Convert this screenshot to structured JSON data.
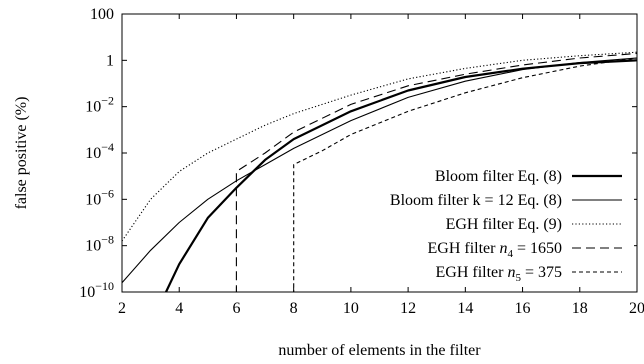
{
  "chart_data": {
    "type": "line",
    "title": "",
    "xlabel": "number of elements in the filter",
    "ylabel": "false positive (%)",
    "xlim": [
      2,
      20
    ],
    "ylim_log10": [
      -10,
      2
    ],
    "y_scale": "log",
    "x_ticks": [
      2,
      4,
      6,
      8,
      10,
      12,
      14,
      16,
      18,
      20
    ],
    "y_ticks": [
      {
        "exp": 2,
        "base": "100",
        "sup": ""
      },
      {
        "exp": 0,
        "base": "1",
        "sup": ""
      },
      {
        "exp": -2,
        "base": "10",
        "sup": "−2"
      },
      {
        "exp": -4,
        "base": "10",
        "sup": "−4"
      },
      {
        "exp": -6,
        "base": "10",
        "sup": "−6"
      },
      {
        "exp": -8,
        "base": "10",
        "sup": "−8"
      },
      {
        "exp": -10,
        "base": "10",
        "sup": "−10"
      }
    ],
    "legend_position": "bottom-right",
    "series": [
      {
        "name": "Bloom filter Eq. (8)",
        "style": "thick-solid",
        "x": [
          3.5,
          4,
          5,
          6,
          7,
          8,
          10,
          12,
          14,
          16,
          18,
          20
        ],
        "log10_y": [
          -10.1,
          -8.8,
          -6.8,
          -5.5,
          -4.3,
          -3.4,
          -2.2,
          -1.3,
          -0.72,
          -0.36,
          -0.12,
          0.0
        ]
      },
      {
        "name": "Bloom filter k = 12 Eq. (8)",
        "style": "thin-solid",
        "x": [
          2,
          3,
          4,
          5,
          6,
          7,
          8,
          10,
          12,
          14,
          16,
          18,
          20
        ],
        "log10_y": [
          -9.6,
          -8.2,
          -7.0,
          -6.0,
          -5.2,
          -4.5,
          -3.8,
          -2.6,
          -1.6,
          -0.9,
          -0.4,
          -0.1,
          0.1
        ]
      },
      {
        "name": "EGH filter Eq. (9)",
        "style": "dotted",
        "x": [
          2,
          3,
          4,
          5,
          6,
          7,
          8,
          10,
          12,
          14,
          16,
          18,
          20
        ],
        "log10_y": [
          -7.8,
          -6.0,
          -4.8,
          -4.0,
          -3.4,
          -2.8,
          -2.3,
          -1.5,
          -0.8,
          -0.35,
          0.0,
          0.2,
          0.35
        ]
      },
      {
        "name": "EGH filter",
        "name_math": "n",
        "name_sub": "4",
        "name_value": " = 1650",
        "style": "long-dash",
        "x": [
          6,
          6,
          7,
          8,
          10,
          12,
          14,
          16,
          18,
          20
        ],
        "log10_y": [
          -10.1,
          -4.8,
          -4.0,
          -3.1,
          -1.9,
          -1.1,
          -0.6,
          -0.2,
          0.1,
          0.3
        ]
      },
      {
        "name": "EGH filter",
        "name_math": "n",
        "name_sub": "5",
        "name_value": " = 375",
        "style": "short-dash",
        "x": [
          8,
          8,
          9,
          10,
          12,
          14,
          16,
          18,
          20
        ],
        "log10_y": [
          -10.1,
          -4.5,
          -3.9,
          -3.2,
          -2.2,
          -1.4,
          -0.75,
          -0.25,
          0.1
        ]
      }
    ]
  }
}
